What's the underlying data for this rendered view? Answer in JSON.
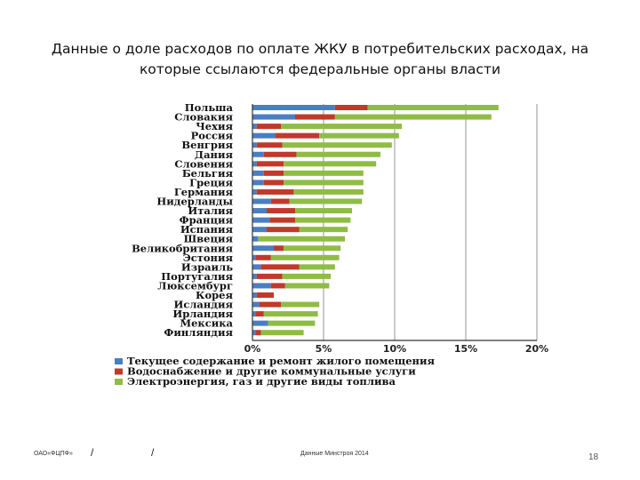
{
  "slide": {
    "title_line1": "Данные о доле расходов по оплате ЖКУ в потребительских расходах, на",
    "title_line2": "которые ссылаются федеральные органы власти"
  },
  "footer": {
    "org": "ОАО«ФЦПФ»",
    "slash": "/",
    "source": "Данные Минстроя 2014",
    "page_number": "18"
  },
  "colors": {
    "blue": "#4a7ec2",
    "red": "#c0392b",
    "green": "#8fbc45",
    "grid": "#a7a7a7"
  },
  "chart_data": {
    "type": "bar",
    "orientation": "horizontal",
    "stacked": true,
    "xlim": [
      0,
      20
    ],
    "x_ticks": [
      "0%",
      "5%",
      "10%",
      "15%",
      "20%"
    ],
    "grid": true,
    "legend_position": "bottom",
    "categories": [
      "Польша",
      "Словакия",
      "Чехия",
      "Россия",
      "Венгрия",
      "Дания",
      "Словения",
      "Бельгия",
      "Греция",
      "Германия",
      "Нидерланды",
      "Италия",
      "Франция",
      "Испания",
      "Швеция",
      "Великобритания",
      "Эстония",
      "Израиль",
      "Португалия",
      "Люксембург",
      "Корея",
      "Исландия",
      "Ирландия",
      "Мексика",
      "Финляндия"
    ],
    "series": [
      {
        "name": "Текущее содержание и ремонт жилого помещения",
        "color": "#4a7ec2",
        "values": [
          5.8,
          3.0,
          0.3,
          1.6,
          0.3,
          0.8,
          0.3,
          0.8,
          0.8,
          0.3,
          1.3,
          1.0,
          1.2,
          1.0,
          0.4,
          1.5,
          0.2,
          0.6,
          0.3,
          1.3,
          0.3,
          0.5,
          0.2,
          1.1,
          0.2
        ]
      },
      {
        "name": "Водоснабжение и другие коммунальные услуги",
        "color": "#c0392b",
        "values": [
          2.3,
          2.8,
          1.7,
          3.1,
          1.8,
          2.3,
          1.9,
          1.4,
          1.4,
          2.6,
          1.3,
          2.0,
          1.8,
          2.3,
          0,
          0.7,
          1.1,
          2.7,
          1.8,
          1.0,
          1.2,
          1.5,
          0.6,
          0,
          0.4
        ]
      },
      {
        "name": "Электроэнергия, газ и другие виды топлива",
        "color": "#8fbc45",
        "values": [
          9.2,
          11.0,
          8.5,
          5.6,
          7.7,
          5.9,
          6.5,
          5.6,
          5.6,
          4.9,
          5.1,
          4.0,
          3.9,
          3.4,
          6.1,
          4.0,
          4.8,
          2.5,
          3.4,
          3.1,
          0,
          2.7,
          3.8,
          3.3,
          3.0
        ]
      }
    ]
  }
}
